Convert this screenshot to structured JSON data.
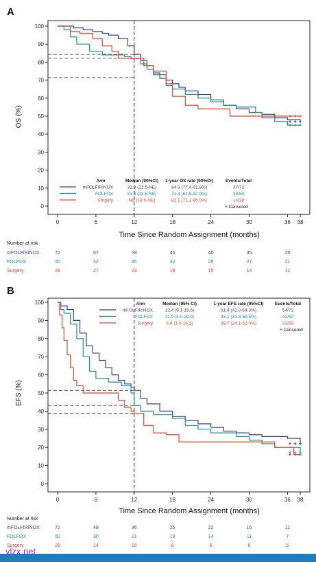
{
  "chart_data": [
    {
      "panel_label": "A",
      "type": "line",
      "ylabel": "OS (%)",
      "xlabel": "Time Since Random Assignment (months)",
      "xticks": [
        0,
        6,
        12,
        18,
        24,
        30,
        36,
        38
      ],
      "yticks": [
        0,
        10,
        20,
        30,
        40,
        50,
        60,
        70,
        80,
        90,
        100
      ],
      "xlim": [
        -1,
        39
      ],
      "ylim": [
        0,
        100
      ],
      "reference_lines": {
        "x": 12,
        "y": [
          84.3,
          82.1,
          71.4
        ]
      },
      "table_headers": [
        "Arm",
        "Median (90%CI)",
        "1-year OS rate (90%CI)",
        "Events/Total"
      ],
      "censored_label": "+ Censored",
      "series": [
        {
          "name": "mFOLFIRINOX",
          "color": "#3b3d9a",
          "median": "31.3 (21.5-NE)",
          "rate": "84.3 (77.4-91.8%)",
          "events": "37/72",
          "x": [
            0,
            2.5,
            4,
            5.5,
            7,
            8,
            9.5,
            11,
            12,
            13,
            14,
            15,
            16,
            17,
            18,
            19,
            20,
            22,
            24,
            26,
            28,
            30,
            32,
            34,
            36,
            38
          ],
          "y": [
            100,
            99,
            98,
            97,
            96,
            95,
            93,
            89,
            84.3,
            81,
            78,
            74,
            71,
            70,
            68,
            66,
            64,
            62,
            59,
            56,
            54,
            52,
            51,
            49,
            48,
            47
          ]
        },
        {
          "name": "FOLFOX",
          "color": "#1e8f8c",
          "median": "31.8 (23.8-NE)",
          "rate": "71.4 (61.6-82.9%)",
          "events": "29/50",
          "x": [
            0,
            1,
            2,
            3,
            5,
            7,
            9,
            10.5,
            11.5,
            12,
            13,
            14,
            15,
            17,
            18,
            20,
            22,
            24,
            26,
            28,
            30,
            31,
            32,
            34,
            36,
            38
          ],
          "y": [
            100,
            98,
            94,
            90,
            86,
            84,
            84,
            83,
            82,
            82,
            79,
            76,
            73,
            67,
            65,
            62,
            60,
            58,
            56,
            55,
            55,
            52,
            49,
            47,
            45,
            45
          ]
        },
        {
          "name": "Surgery",
          "color": "#e0462e",
          "median": "NE (18.5-NE)",
          "rate": "82.1 (71.1-95.0%)",
          "events": "14/28",
          "x": [
            0,
            2,
            3.5,
            5.5,
            7,
            8.5,
            9.5,
            11,
            12,
            13.5,
            15,
            17,
            18,
            20,
            22,
            24,
            27,
            30,
            32,
            34,
            36,
            38
          ],
          "y": [
            100,
            97,
            96,
            93,
            89,
            86,
            82.1,
            82.1,
            82.1,
            78,
            75,
            68,
            61,
            56,
            54,
            54,
            50,
            50,
            50,
            50,
            50,
            50
          ]
        }
      ],
      "risk_title": "Number at risk",
      "risk_times": [
        0,
        6,
        12,
        18,
        24,
        30,
        36
      ],
      "risk_table": [
        {
          "name": "mFOLFIRINOX",
          "color": "#3b3d9a",
          "values": [
            72,
            67,
            59,
            45,
            40,
            35,
            26
          ]
        },
        {
          "name": "FOLFOX",
          "color": "#1e8f8c",
          "values": [
            50,
            42,
            35,
            32,
            29,
            27,
            21
          ]
        },
        {
          "name": "Surgery",
          "color": "#e0462e",
          "values": [
            28,
            27,
            23,
            18,
            15,
            14,
            12
          ]
        }
      ]
    },
    {
      "panel_label": "B",
      "type": "line",
      "ylabel": "EFS (%)",
      "xlabel": "Time Since Random Assignment (months)",
      "xticks": [
        0,
        6,
        12,
        18,
        24,
        30,
        36,
        38
      ],
      "yticks": [
        0,
        10,
        20,
        30,
        40,
        50,
        60,
        70,
        80,
        90,
        100
      ],
      "xlim": [
        -1,
        39
      ],
      "ylim": [
        0,
        100
      ],
      "reference_lines": {
        "x": 12,
        "y": [
          51.4,
          43.1,
          38.7
        ]
      },
      "table_headers": [
        "Arm",
        "Median (95% CI)",
        "1-year EFS rate (95%CI)",
        "Events/Total"
      ],
      "censored_label": "+ Censored",
      "series": [
        {
          "name": "mFOLFIRINOX",
          "color": "#3b3d9a",
          "median": "12.4 (9.1-15.6)",
          "rate": "51.4 (41.0-64.3%)",
          "events": "54/72",
          "x": [
            0,
            0.5,
            1.5,
            2.5,
            3.5,
            4.5,
            5.5,
            6.5,
            7.5,
            8.5,
            9.5,
            10.5,
            11.5,
            12,
            13,
            14,
            16,
            18,
            20,
            22,
            24,
            26,
            28,
            30,
            32,
            34,
            36,
            38
          ],
          "y": [
            100,
            98,
            96,
            90,
            83,
            76,
            72,
            68,
            64,
            60,
            57,
            55,
            53,
            51.4,
            47,
            44,
            40,
            37,
            35,
            33,
            31,
            29,
            28,
            27,
            26,
            26,
            25,
            22
          ]
        },
        {
          "name": "FOLFOX",
          "color": "#1e8f8c",
          "median": "11.0 (4.0-20.0)",
          "rate": "43.1 (31.3-59.5%)",
          "events": "42/50",
          "x": [
            0,
            0.5,
            1,
            2,
            3,
            4,
            5,
            6,
            8,
            10,
            11.5,
            12,
            13,
            15,
            18,
            20,
            22,
            24,
            28,
            30,
            32,
            34,
            36,
            38
          ],
          "y": [
            100,
            96,
            94,
            88,
            80,
            70,
            62,
            58,
            56,
            54,
            50,
            43.1,
            40,
            38,
            36,
            32,
            30,
            28,
            26,
            24,
            22,
            20,
            20,
            17
          ]
        },
        {
          "name": "Surgery",
          "color": "#e0462e",
          "median": "6.8 (1.6-16.1)",
          "rate": "38.7 (24.1-62.0%)",
          "events": "23/28",
          "x": [
            0,
            0.3,
            0.7,
            1,
            1.5,
            2,
            2.5,
            3,
            4,
            6,
            8,
            9.5,
            10.5,
            11.5,
            12,
            13.5,
            15,
            17,
            19,
            24,
            30,
            34,
            36,
            37,
            38
          ],
          "y": [
            100,
            93,
            86,
            79,
            71,
            64,
            57,
            54,
            50,
            50,
            50,
            46,
            42,
            40,
            38.7,
            32,
            28,
            27,
            23,
            23,
            23,
            20,
            20,
            16,
            16
          ]
        }
      ],
      "risk_title": "Number at risk",
      "risk_times": [
        0,
        6,
        12,
        18,
        24,
        30,
        36
      ],
      "risk_table": [
        {
          "name": "mFOLFIRINOX",
          "color": "#3b3d9a",
          "values": [
            72,
            49,
            36,
            25,
            22,
            16,
            11
          ]
        },
        {
          "name": "FOLFOX",
          "color": "#1e8f8c",
          "values": [
            50,
            30,
            21,
            19,
            14,
            11,
            7
          ]
        },
        {
          "name": "Surgery",
          "color": "#e0462e",
          "values": [
            28,
            14,
            10,
            6,
            6,
            6,
            5
          ]
        }
      ]
    }
  ],
  "watermark": "ylzx.net",
  "accent_bar_color": "#1a7fc1"
}
